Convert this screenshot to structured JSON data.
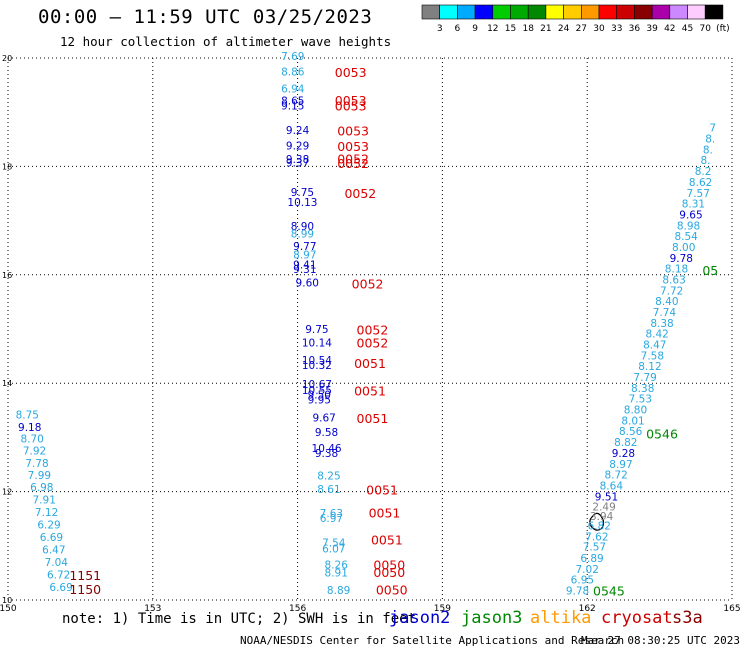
{
  "header": {
    "title": "00:00 – 11:59 UTC 03/25/2023",
    "subtitle": "12 hour collection of altimeter wave heights"
  },
  "colorbar": {
    "colors": [
      "#808080",
      "#00ffff",
      "#00aaff",
      "#0000ff",
      "#00cc00",
      "#00aa00",
      "#008800",
      "#ffff00",
      "#ffcc00",
      "#ff9900",
      "#ff0000",
      "#cc0000",
      "#880000",
      "#aa00aa",
      "#cc88ff",
      "#ffccff",
      "#000000"
    ],
    "labels": [
      "3",
      "6",
      "9",
      "12",
      "15",
      "18",
      "21",
      "24",
      "27",
      "30",
      "33",
      "36",
      "39",
      "42",
      "45",
      "70",
      "(ft)"
    ]
  },
  "legend": {
    "note": "note: 1) Time is in UTC; 2) SWH is in feet",
    "satellites": [
      {
        "name": "jason2",
        "color": "#0000cc"
      },
      {
        "name": "jason3",
        "color": "#008800"
      },
      {
        "name": "altika",
        "color": "#ff9900"
      },
      {
        "name": "cryosat",
        "color": "#cc0000"
      },
      {
        "name": "s3a",
        "color": "#880000"
      }
    ]
  },
  "footer": {
    "credit": "NOAA/NESDIS Center for Satellite Applications and Research",
    "timestamp": "Mar 27 08:30:25 UTC 2023"
  },
  "chart_data": {
    "type": "scatter",
    "xlim": [
      150,
      165
    ],
    "ylim": [
      10,
      20
    ],
    "xticks": [
      "150",
      "153",
      "156",
      "159",
      "162",
      "165"
    ],
    "yticks": [
      "10",
      "12",
      "14",
      "16",
      "18",
      "20"
    ],
    "grid": true,
    "colors": {
      "light": "#2aa8e0",
      "dark": "#0000cc",
      "gray": "#808080",
      "cryosat": "#dd0000",
      "s3a": "#880000",
      "jason3": "#008800"
    },
    "points": [
      {
        "x": 150.4,
        "y": 13.35,
        "label": "8.75",
        "c": "light"
      },
      {
        "x": 150.45,
        "y": 13.12,
        "label": "9.18",
        "c": "dark"
      },
      {
        "x": 150.5,
        "y": 12.91,
        "label": "8.70",
        "c": "light"
      },
      {
        "x": 150.55,
        "y": 12.68,
        "label": "7.92",
        "c": "light"
      },
      {
        "x": 150.6,
        "y": 12.45,
        "label": "7.78",
        "c": "light"
      },
      {
        "x": 150.65,
        "y": 12.23,
        "label": "7.99",
        "c": "light"
      },
      {
        "x": 150.7,
        "y": 12.01,
        "label": "6.98",
        "c": "light"
      },
      {
        "x": 150.75,
        "y": 11.78,
        "label": "7.91",
        "c": "light"
      },
      {
        "x": 150.8,
        "y": 11.55,
        "label": "7.12",
        "c": "light"
      },
      {
        "x": 150.85,
        "y": 11.32,
        "label": "6.29",
        "c": "light"
      },
      {
        "x": 150.9,
        "y": 11.09,
        "label": "6.69",
        "c": "light"
      },
      {
        "x": 150.95,
        "y": 10.86,
        "label": "6.47",
        "c": "light"
      },
      {
        "x": 151.0,
        "y": 10.63,
        "label": "7.04",
        "c": "light"
      },
      {
        "x": 151.05,
        "y": 10.4,
        "label": "6.72",
        "c": "light"
      },
      {
        "x": 151.1,
        "y": 10.17,
        "label": "6.69",
        "c": "light"
      },
      {
        "x": 155.9,
        "y": 19.96,
        "label": "7.69",
        "c": "light"
      },
      {
        "x": 155.9,
        "y": 19.68,
        "label": "8.86",
        "c": "light"
      },
      {
        "x": 155.9,
        "y": 19.36,
        "label": "6.94",
        "c": "light"
      },
      {
        "x": 155.9,
        "y": 19.14,
        "label": "8.65",
        "c": "dark"
      },
      {
        "x": 155.9,
        "y": 19.05,
        "label": "9.15",
        "c": "dark"
      },
      {
        "x": 156.0,
        "y": 18.6,
        "label": "9.24",
        "c": "dark"
      },
      {
        "x": 156.0,
        "y": 18.31,
        "label": "9.29",
        "c": "dark"
      },
      {
        "x": 156.0,
        "y": 18.06,
        "label": "9.38",
        "c": "dark"
      },
      {
        "x": 156.0,
        "y": 18.0,
        "label": "9.37",
        "c": "dark"
      },
      {
        "x": 156.1,
        "y": 17.45,
        "label": "9.75",
        "c": "dark"
      },
      {
        "x": 156.1,
        "y": 17.27,
        "label": "10.13",
        "c": "dark"
      },
      {
        "x": 156.1,
        "y": 16.83,
        "label": "8.90",
        "c": "dark"
      },
      {
        "x": 156.1,
        "y": 16.69,
        "label": "8.99",
        "c": "light"
      },
      {
        "x": 156.15,
        "y": 16.46,
        "label": "9.77",
        "c": "dark"
      },
      {
        "x": 156.15,
        "y": 16.3,
        "label": "8.97",
        "c": "light"
      },
      {
        "x": 156.15,
        "y": 16.12,
        "label": "9.41",
        "c": "dark"
      },
      {
        "x": 156.15,
        "y": 16.03,
        "label": "9.31",
        "c": "dark"
      },
      {
        "x": 156.2,
        "y": 15.78,
        "label": "9.60",
        "c": "dark"
      },
      {
        "x": 156.4,
        "y": 14.93,
        "label": "9.75",
        "c": "dark"
      },
      {
        "x": 156.4,
        "y": 14.68,
        "label": "10.14",
        "c": "dark"
      },
      {
        "x": 156.4,
        "y": 14.35,
        "label": "10.54",
        "c": "dark"
      },
      {
        "x": 156.4,
        "y": 14.26,
        "label": "10.32",
        "c": "dark"
      },
      {
        "x": 156.4,
        "y": 13.91,
        "label": "10.67",
        "c": "dark"
      },
      {
        "x": 156.4,
        "y": 13.8,
        "label": "10.55",
        "c": "dark"
      },
      {
        "x": 156.45,
        "y": 13.72,
        "label": "9.50",
        "c": "dark"
      },
      {
        "x": 156.45,
        "y": 13.63,
        "label": "9.95",
        "c": "dark"
      },
      {
        "x": 156.55,
        "y": 13.29,
        "label": "9.67",
        "c": "dark"
      },
      {
        "x": 156.6,
        "y": 13.03,
        "label": "9.58",
        "c": "dark"
      },
      {
        "x": 156.6,
        "y": 12.73,
        "label": "10.46",
        "c": "dark"
      },
      {
        "x": 156.6,
        "y": 12.64,
        "label": "9.38",
        "c": "dark"
      },
      {
        "x": 156.65,
        "y": 12.22,
        "label": "8.25",
        "c": "light"
      },
      {
        "x": 156.65,
        "y": 11.97,
        "label": "8.61",
        "c": "light"
      },
      {
        "x": 156.7,
        "y": 11.53,
        "label": "7.63",
        "c": "light"
      },
      {
        "x": 156.7,
        "y": 11.44,
        "label": "6.97",
        "c": "light"
      },
      {
        "x": 156.75,
        "y": 10.99,
        "label": "7.54",
        "c": "light"
      },
      {
        "x": 156.75,
        "y": 10.88,
        "label": "6.07",
        "c": "light"
      },
      {
        "x": 156.8,
        "y": 10.58,
        "label": "8.26",
        "c": "light"
      },
      {
        "x": 156.8,
        "y": 10.43,
        "label": "8.91",
        "c": "light"
      },
      {
        "x": 156.85,
        "y": 10.11,
        "label": "8.89",
        "c": "light"
      },
      {
        "x": 161.8,
        "y": 10.1,
        "label": "9.78",
        "c": "light"
      },
      {
        "x": 161.9,
        "y": 10.3,
        "label": "6.95",
        "c": "light"
      },
      {
        "x": 162.0,
        "y": 10.5,
        "label": "7.02",
        "c": "light"
      },
      {
        "x": 162.1,
        "y": 10.7,
        "label": "6.89",
        "c": "light"
      },
      {
        "x": 162.15,
        "y": 10.91,
        "label": "7.57",
        "c": "light"
      },
      {
        "x": 162.2,
        "y": 11.1,
        "label": "7.62",
        "c": "light"
      },
      {
        "x": 162.25,
        "y": 11.3,
        "label": "6.82",
        "c": "light"
      },
      {
        "x": 162.3,
        "y": 11.48,
        "label": "3.94",
        "c": "gray"
      },
      {
        "x": 162.35,
        "y": 11.65,
        "label": "2.49",
        "c": "gray"
      },
      {
        "x": 162.4,
        "y": 11.84,
        "label": "9.51",
        "c": "dark"
      },
      {
        "x": 162.5,
        "y": 12.04,
        "label": "8.64",
        "c": "light"
      },
      {
        "x": 162.6,
        "y": 12.24,
        "label": "8.72",
        "c": "light"
      },
      {
        "x": 162.7,
        "y": 12.44,
        "label": "8.97",
        "c": "light"
      },
      {
        "x": 162.75,
        "y": 12.64,
        "label": "9.28",
        "c": "dark"
      },
      {
        "x": 162.8,
        "y": 12.84,
        "label": "8.82",
        "c": "light"
      },
      {
        "x": 162.9,
        "y": 13.04,
        "label": "8.56",
        "c": "light"
      },
      {
        "x": 162.95,
        "y": 13.24,
        "label": "8.01",
        "c": "light"
      },
      {
        "x": 163.0,
        "y": 13.44,
        "label": "8.80",
        "c": "light"
      },
      {
        "x": 163.1,
        "y": 13.64,
        "label": "7.53",
        "c": "light"
      },
      {
        "x": 163.15,
        "y": 13.84,
        "label": "8.38",
        "c": "light"
      },
      {
        "x": 163.2,
        "y": 14.04,
        "label": "7.79",
        "c": "light"
      },
      {
        "x": 163.3,
        "y": 14.24,
        "label": "8.12",
        "c": "light"
      },
      {
        "x": 163.35,
        "y": 14.44,
        "label": "7.58",
        "c": "light"
      },
      {
        "x": 163.4,
        "y": 14.64,
        "label": "8.47",
        "c": "light"
      },
      {
        "x": 163.45,
        "y": 14.84,
        "label": "8.42",
        "c": "light"
      },
      {
        "x": 163.55,
        "y": 15.04,
        "label": "8.38",
        "c": "light"
      },
      {
        "x": 163.6,
        "y": 15.24,
        "label": "7.74",
        "c": "light"
      },
      {
        "x": 163.65,
        "y": 15.44,
        "label": "8.40",
        "c": "light"
      },
      {
        "x": 163.75,
        "y": 15.64,
        "label": "7.72",
        "c": "light"
      },
      {
        "x": 163.8,
        "y": 15.84,
        "label": "8.63",
        "c": "light"
      },
      {
        "x": 163.85,
        "y": 16.04,
        "label": "8.18",
        "c": "light"
      },
      {
        "x": 163.95,
        "y": 16.24,
        "label": "9.78",
        "c": "dark"
      },
      {
        "x": 164.0,
        "y": 16.44,
        "label": "8.00",
        "c": "light"
      },
      {
        "x": 164.05,
        "y": 16.64,
        "label": "8.54",
        "c": "light"
      },
      {
        "x": 164.1,
        "y": 16.84,
        "label": "8.98",
        "c": "light"
      },
      {
        "x": 164.15,
        "y": 17.04,
        "label": "9.65",
        "c": "dark"
      },
      {
        "x": 164.2,
        "y": 17.24,
        "label": "8.31",
        "c": "light"
      },
      {
        "x": 164.3,
        "y": 17.44,
        "label": "7.57",
        "c": "light"
      },
      {
        "x": 164.35,
        "y": 17.64,
        "label": "8.62",
        "c": "light"
      },
      {
        "x": 164.4,
        "y": 17.84,
        "label": "8.2",
        "c": "light"
      },
      {
        "x": 164.45,
        "y": 18.04,
        "label": "8.",
        "c": "light"
      },
      {
        "x": 164.5,
        "y": 18.24,
        "label": "8.",
        "c": "light"
      },
      {
        "x": 164.55,
        "y": 18.44,
        "label": "8.",
        "c": "light"
      },
      {
        "x": 164.6,
        "y": 18.64,
        "label": "7",
        "c": "light"
      }
    ],
    "time_labels": [
      {
        "x": 157.1,
        "y": 19.65,
        "label": "0053",
        "c": "cryosat"
      },
      {
        "x": 157.1,
        "y": 19.13,
        "label": "0053",
        "c": "cryosat"
      },
      {
        "x": 157.1,
        "y": 19.03,
        "label": "0053",
        "c": "cryosat"
      },
      {
        "x": 157.15,
        "y": 18.57,
        "label": "0053",
        "c": "cryosat"
      },
      {
        "x": 157.15,
        "y": 18.28,
        "label": "0053",
        "c": "cryosat"
      },
      {
        "x": 157.15,
        "y": 18.05,
        "label": "0052",
        "c": "cryosat"
      },
      {
        "x": 157.15,
        "y": 17.97,
        "label": "0052",
        "c": "cryosat"
      },
      {
        "x": 157.3,
        "y": 17.42,
        "label": "0052",
        "c": "cryosat"
      },
      {
        "x": 157.45,
        "y": 15.75,
        "label": "0052",
        "c": "cryosat"
      },
      {
        "x": 157.55,
        "y": 14.9,
        "label": "0052",
        "c": "cryosat"
      },
      {
        "x": 157.55,
        "y": 14.66,
        "label": "0052",
        "c": "cryosat"
      },
      {
        "x": 157.5,
        "y": 14.28,
        "label": "0051",
        "c": "cryosat"
      },
      {
        "x": 157.5,
        "y": 13.77,
        "label": "0051",
        "c": "cryosat"
      },
      {
        "x": 157.55,
        "y": 13.27,
        "label": "0051",
        "c": "cryosat"
      },
      {
        "x": 157.75,
        "y": 11.95,
        "label": "0051",
        "c": "cryosat"
      },
      {
        "x": 157.8,
        "y": 11.52,
        "label": "0051",
        "c": "cryosat"
      },
      {
        "x": 157.85,
        "y": 11.02,
        "label": "0051",
        "c": "cryosat"
      },
      {
        "x": 157.9,
        "y": 10.56,
        "label": "0050",
        "c": "cryosat"
      },
      {
        "x": 157.9,
        "y": 10.42,
        "label": "0050",
        "c": "cryosat"
      },
      {
        "x": 157.95,
        "y": 10.1,
        "label": "0050",
        "c": "cryosat"
      },
      {
        "x": 151.6,
        "y": 10.37,
        "label": "1151",
        "c": "s3a"
      },
      {
        "x": 151.6,
        "y": 10.11,
        "label": "1150",
        "c": "s3a"
      },
      {
        "x": 164.55,
        "y": 16.0,
        "label": "05",
        "c": "jason3"
      },
      {
        "x": 163.55,
        "y": 12.98,
        "label": "0546",
        "c": "jason3"
      },
      {
        "x": 162.45,
        "y": 10.08,
        "label": "0545",
        "c": "jason3"
      }
    ]
  }
}
